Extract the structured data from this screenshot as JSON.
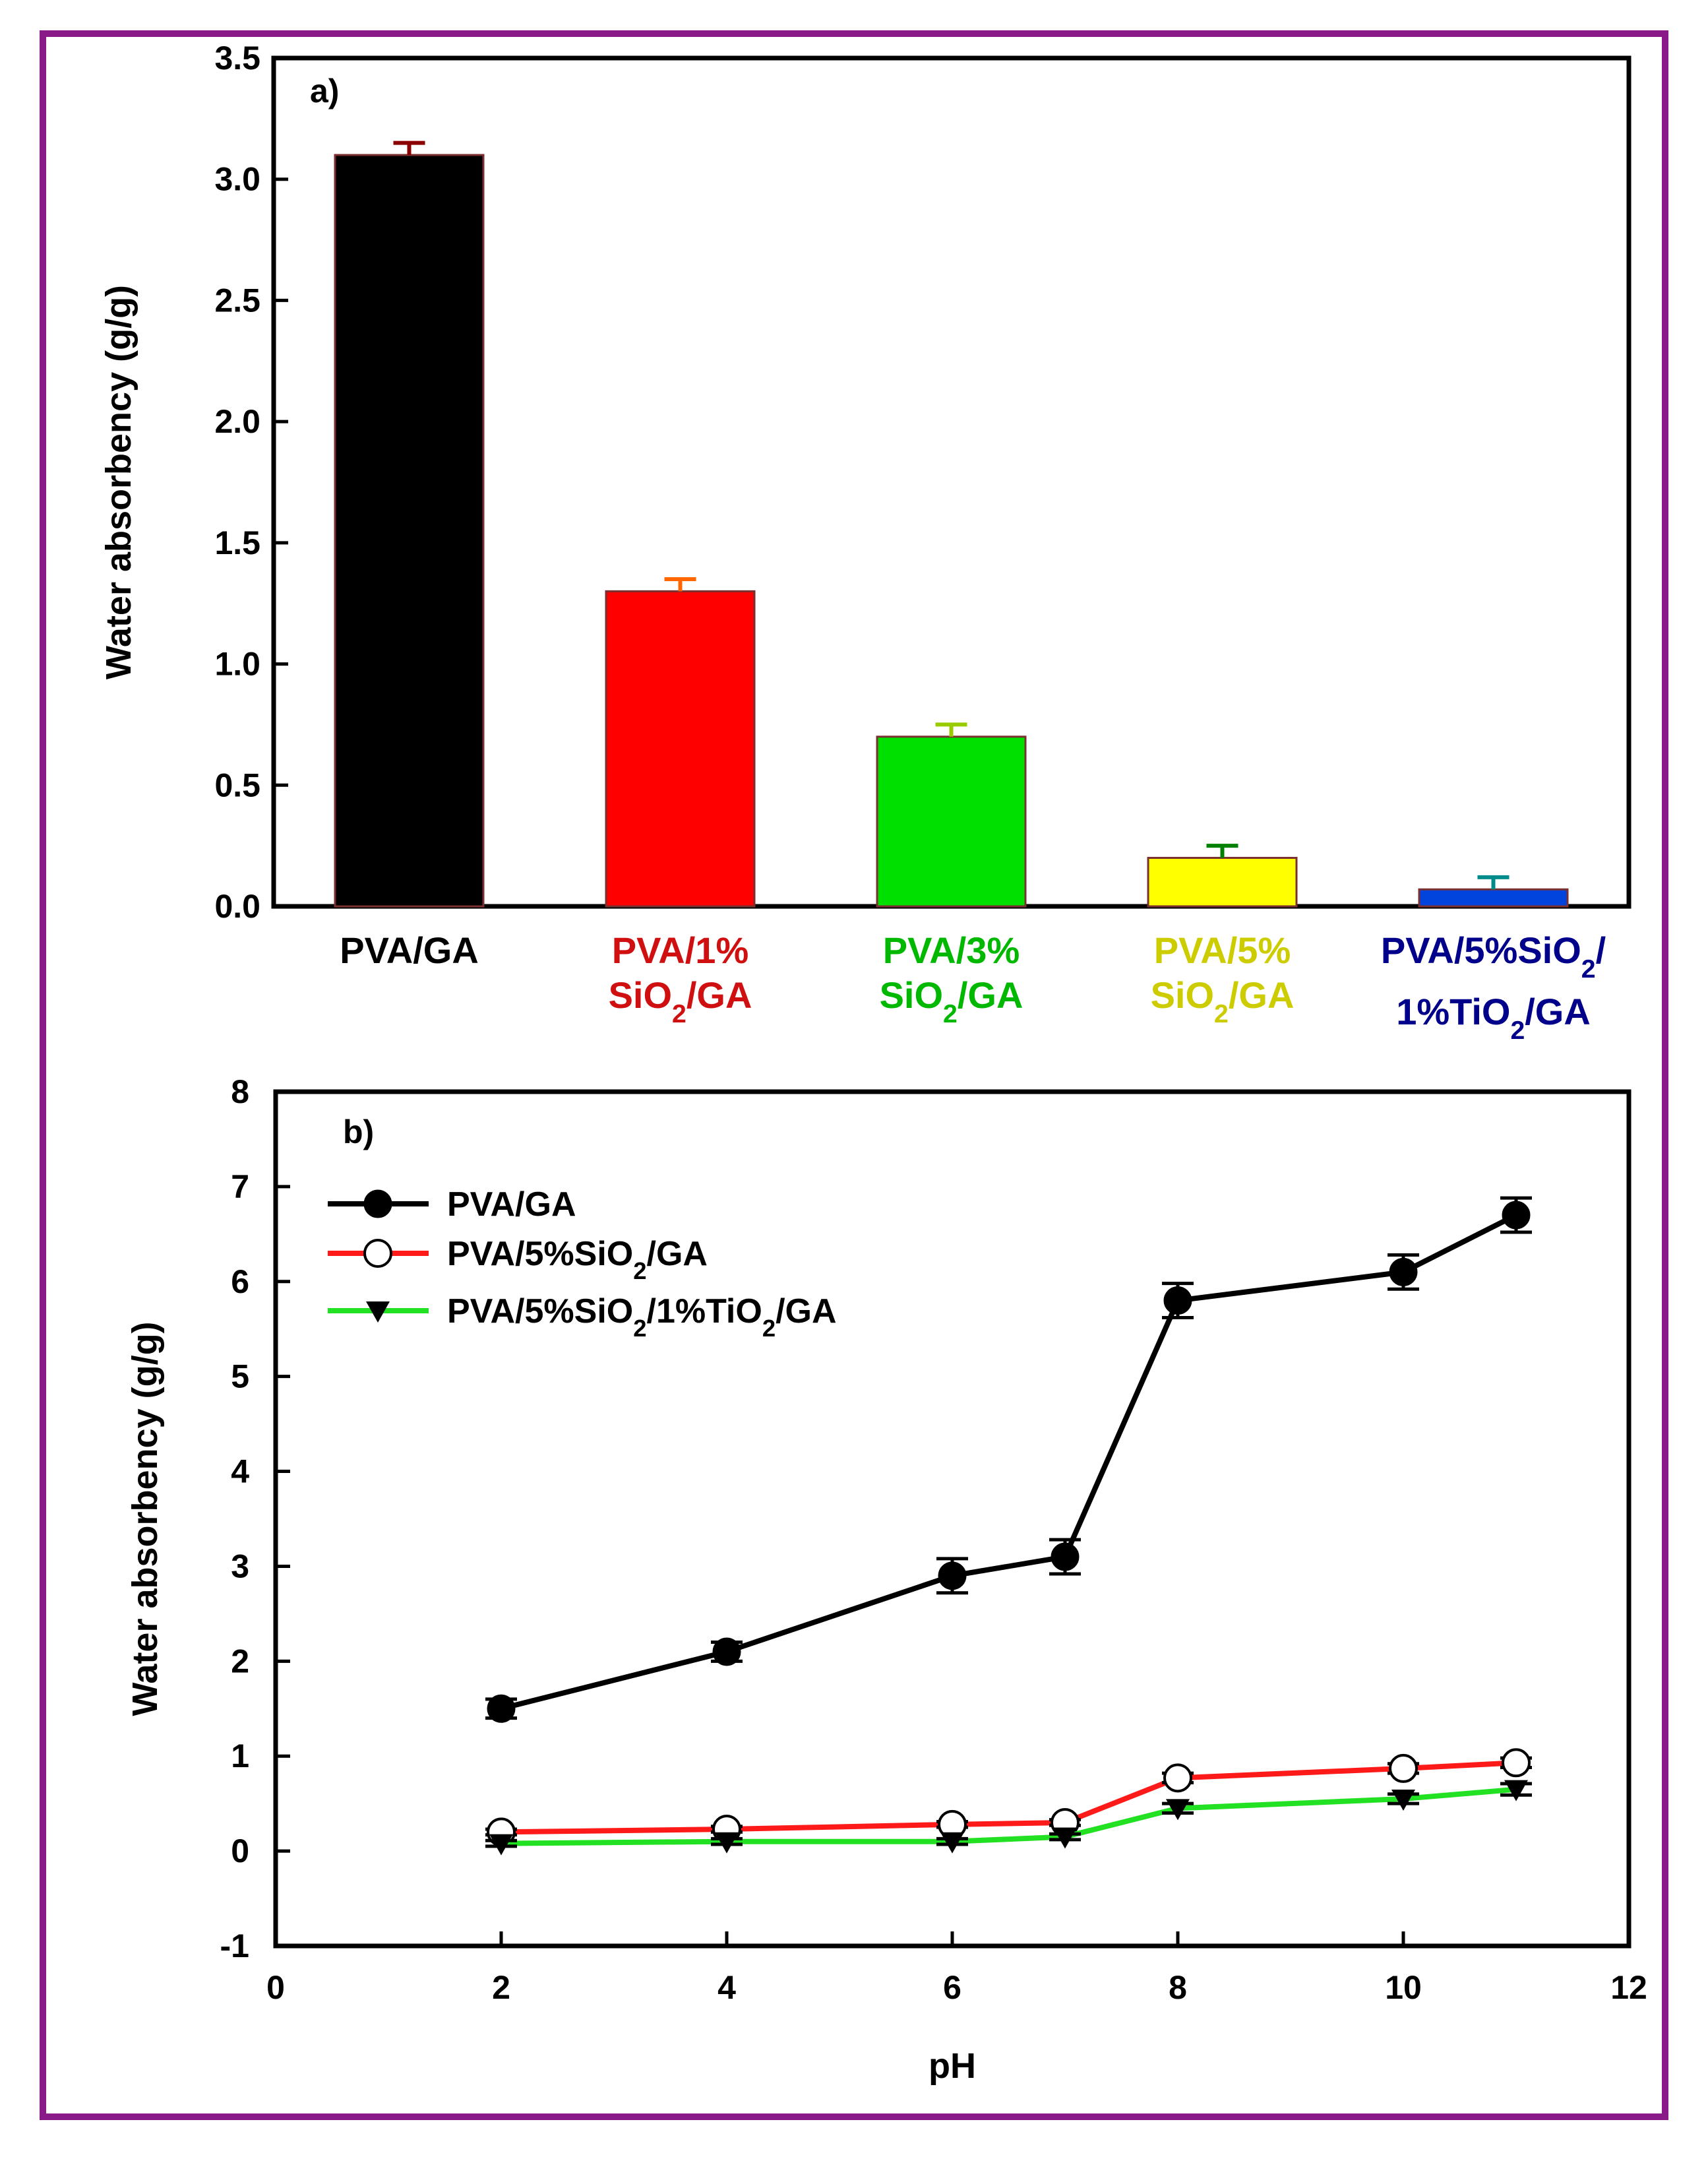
{
  "chart_data": [
    {
      "panel_label": "a)",
      "type": "bar",
      "ylabel": "Water absorbency (g/g)",
      "ylim": [
        0,
        3.5
      ],
      "yticks": [
        "0.0",
        "0.5",
        "1.0",
        "1.5",
        "2.0",
        "2.5",
        "3.0",
        "3.5"
      ],
      "categories": [
        {
          "line1": "PVA/GA",
          "line2": "",
          "color": "#000000",
          "label_color": "#000000",
          "err_color": "#8b0000"
        },
        {
          "line1": "PVA/1%",
          "line2": "SiO2/GA",
          "color": "#ff0000",
          "label_color": "#d01010",
          "err_color": "#ff6600"
        },
        {
          "line1": "PVA/3%",
          "line2": "SiO2/GA",
          "color": "#00e000",
          "label_color": "#00b800",
          "err_color": "#99cc00"
        },
        {
          "line1": "PVA/5%",
          "line2": "SiO2/GA",
          "color": "#ffff00",
          "label_color": "#cccc00",
          "err_color": "#008000"
        },
        {
          "line1": "PVA/5%SiO2/",
          "line2": "1%TiO2/GA",
          "color": "#0044dd",
          "label_color": "#00008b",
          "err_color": "#008b8b"
        }
      ],
      "values": [
        3.1,
        1.3,
        0.7,
        0.2,
        0.07
      ],
      "errors": [
        0.05,
        0.05,
        0.05,
        0.05,
        0.05
      ]
    },
    {
      "panel_label": "b)",
      "type": "line",
      "xlabel": "pH",
      "ylabel": "Water absorbency (g/g)",
      "xlim": [
        0,
        12
      ],
      "ylim": [
        -1,
        8
      ],
      "xticks": [
        "0",
        "2",
        "4",
        "6",
        "8",
        "10",
        "12"
      ],
      "yticks": [
        "-1",
        "0",
        "1",
        "2",
        "3",
        "4",
        "5",
        "6",
        "7",
        "8"
      ],
      "x": [
        2,
        4,
        6,
        7,
        8,
        10,
        11
      ],
      "series": [
        {
          "name": "PVA/GA",
          "line_color": "#000000",
          "marker": "filled-circle",
          "values": [
            1.5,
            2.1,
            2.9,
            3.1,
            5.8,
            6.1,
            6.7
          ],
          "errors": [
            0.1,
            0.1,
            0.18,
            0.18,
            0.18,
            0.18,
            0.18
          ]
        },
        {
          "name": "PVA/5%SiO2/GA",
          "line_color": "#ff1a1a",
          "marker": "open-circle",
          "values": [
            0.2,
            0.23,
            0.28,
            0.3,
            0.77,
            0.87,
            0.93
          ],
          "errors": [
            0.03,
            0.03,
            0.03,
            0.03,
            0.05,
            0.05,
            0.05
          ]
        },
        {
          "name": "PVA/5%SiO2/1%TiO2/GA",
          "line_color": "#22e022",
          "marker": "filled-triangle-down",
          "values": [
            0.08,
            0.1,
            0.1,
            0.15,
            0.45,
            0.55,
            0.65
          ],
          "errors": [
            0.03,
            0.03,
            0.03,
            0.03,
            0.05,
            0.05,
            0.06
          ]
        }
      ]
    }
  ]
}
